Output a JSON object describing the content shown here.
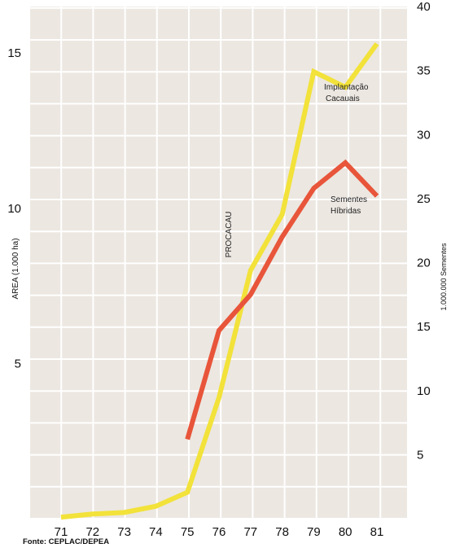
{
  "chart_data": {
    "type": "line",
    "x": [
      "71",
      "72",
      "73",
      "74",
      "75",
      "76",
      "77",
      "78",
      "79",
      "80",
      "81"
    ],
    "xlabel": "",
    "y_left": {
      "label": "AREA (1.000 ha)",
      "ticks": [
        "5",
        "10",
        "15"
      ],
      "ylim": [
        0,
        16.5
      ]
    },
    "y_right": {
      "label": "1.000.000 Sementes",
      "ticks": [
        "5",
        "10",
        "15",
        "20",
        "25",
        "30",
        "35",
        "40"
      ],
      "ylim": [
        0,
        40
      ]
    },
    "series": [
      {
        "name": "Implantação Cacauais",
        "axis": "left",
        "color": "#f2e23a",
        "x": [
          "71",
          "72",
          "73",
          "74",
          "75",
          "76",
          "77",
          "78",
          "79",
          "80",
          "81"
        ],
        "values": [
          0.05,
          0.15,
          0.2,
          0.4,
          0.85,
          3.9,
          8.0,
          9.8,
          14.4,
          13.9,
          15.3
        ]
      },
      {
        "name": "Sementes Híbridas",
        "axis": "right",
        "color": "#e8553a",
        "x": [
          "75",
          "76",
          "77",
          "78",
          "79",
          "80",
          "81"
        ],
        "values": [
          6.2,
          14.7,
          17.5,
          22.0,
          25.8,
          27.8,
          25.2
        ]
      }
    ],
    "annotations": {
      "procacau": "PROCACAU",
      "series1_label": [
        "Implantação",
        "Cacauais"
      ],
      "series2_label": [
        "Sementes",
        "Híbridas"
      ]
    },
    "source": "Fonte: CEPLAC/DEPEA",
    "grid": true,
    "background": "#ece7e1",
    "grid_color": "#ffffff"
  }
}
